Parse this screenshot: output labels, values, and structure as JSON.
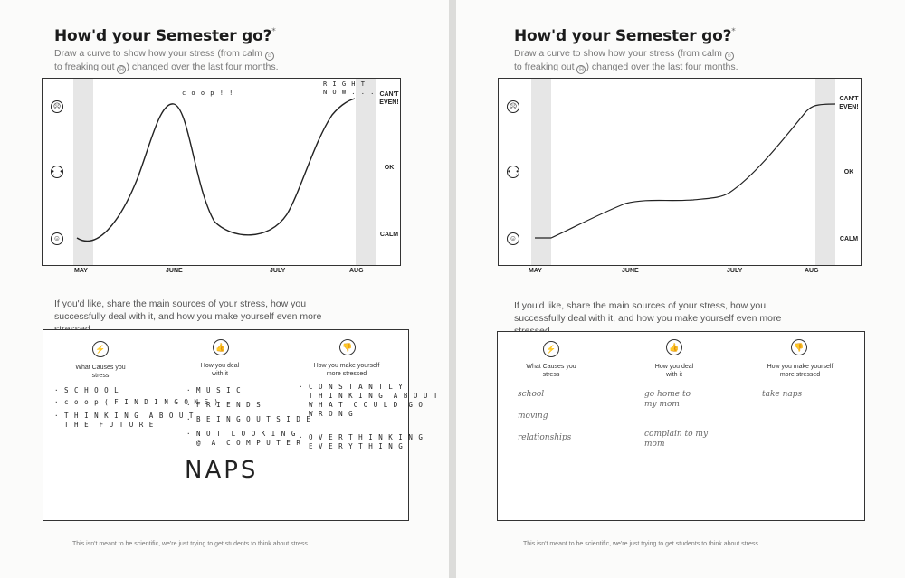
{
  "pages": [
    {
      "title": "How'd your Semester go?",
      "title_mark": "*",
      "subtitle_parts": [
        "Draw a curve to show how your stress (from calm",
        "to freaking out",
        "changed over the last four months."
      ],
      "chart": {
        "levels": [
          {
            "label": "CAN'T\nEVEN!"
          },
          {
            "label": "OK"
          },
          {
            "label": "CALM"
          }
        ],
        "faces": [
          "☹",
          "😐",
          "☺"
        ],
        "months": [
          "MAY",
          "JUNE",
          "JULY",
          "AUG"
        ],
        "annotations": [
          "c o o p ! !",
          "R I G H T\nN O W . . ."
        ]
      },
      "prompt": "If you'd like, share the main sources of your stress, how you successfully deal with it, and how you make yourself even more stressed",
      "columns": [
        {
          "icon": "⚡",
          "heading": "What Causes you\nstress",
          "entries": [
            "· S C H O O L",
            "· c o o p ( F I N D I N G  O N E )",
            "· T H I N K I N G  A B O U T\n  T H E  F U T U R E"
          ]
        },
        {
          "icon": "👍",
          "heading": "How you deal\nwith it",
          "entries": [
            "· M U S I C",
            "· F R I E N D S",
            "· B E I N G  O U T S I D E",
            "· N O T  L O O K I N G\n  @  A  C O M P U T E R"
          ]
        },
        {
          "icon": "👎",
          "heading": "How you make yourself\nmore stressed",
          "entries": [
            "· C O N S T A N T L Y\n  T H I N K I N G  A B O U T\n  W H A T  C O U L D  G O\n  W R O N G",
            "· O V E R T H I N K I N G\n  E V E R Y T H I N G"
          ]
        }
      ],
      "big_note": "NAPS",
      "footer": "This isn't meant to be scientific, we're just trying to get students to think about stress."
    },
    {
      "title": "How'd your Semester go?",
      "title_mark": "*",
      "subtitle_parts": [
        "Draw a curve to show how your stress (from calm",
        "to freaking out",
        "changed over the last four months."
      ],
      "chart": {
        "levels": [
          {
            "label": "CAN'T\nEVEN!"
          },
          {
            "label": "OK"
          },
          {
            "label": "CALM"
          }
        ],
        "faces": [
          "☹",
          "😐",
          "☺"
        ],
        "months": [
          "MAY",
          "JUNE",
          "JULY",
          "AUG"
        ]
      },
      "prompt": "If you'd like, share the main sources of your stress, how you successfully deal with it, and how you make yourself even more stressed",
      "columns": [
        {
          "icon": "⚡",
          "heading": "What Causes you\nstress",
          "entries": [
            "school",
            "moving",
            "relationships"
          ]
        },
        {
          "icon": "👍",
          "heading": "How you deal\nwith it",
          "entries": [
            "go home to\nmy mom",
            "complain to my\nmom"
          ]
        },
        {
          "icon": "👎",
          "heading": "How you make yourself\nmore stressed",
          "entries": [
            "take naps"
          ]
        }
      ],
      "footer": "This isn't meant to be scientific, we're just trying to get students to think about stress."
    }
  ],
  "stress_curves": [
    {
      "x": [
        "start",
        "MAY",
        "JUNE",
        "JULY",
        "AUG"
      ],
      "y_levels": [
        "CALM",
        "CALM",
        "CAN'T EVEN!",
        "CALM",
        "CAN'T EVEN!"
      ]
    },
    {
      "x": [
        "start",
        "MAY",
        "JUNE",
        "JULY",
        "AUG"
      ],
      "y_levels": [
        "CALM",
        "CALM",
        "between CALM and OK",
        "between CALM and OK",
        "CAN'T EVEN!"
      ]
    }
  ]
}
